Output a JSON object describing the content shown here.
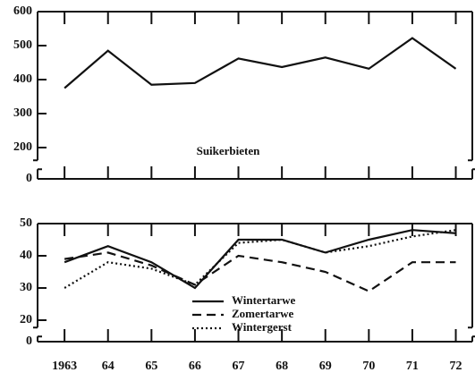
{
  "chart_data": [
    {
      "type": "line",
      "title": "Suikerbieten",
      "values": [
        375,
        485,
        385,
        390,
        462,
        437,
        465,
        432,
        522,
        432
      ],
      "color": "#111111",
      "line_style": "solid",
      "ylim": [
        0,
        600
      ],
      "axis_break": [
        0,
        200
      ],
      "yticks": [
        0,
        200,
        300,
        400,
        500,
        600
      ]
    },
    {
      "type": "line",
      "categories": [
        "1963",
        "64",
        "65",
        "66",
        "67",
        "68",
        "69",
        "70",
        "71",
        "72"
      ],
      "series": [
        {
          "name": "Wintertarwe",
          "color": "#111111",
          "line_style": "solid",
          "values": [
            38,
            43,
            38,
            30,
            45,
            45,
            41,
            45,
            48,
            47
          ]
        },
        {
          "name": "Zomertarwe",
          "color": "#111111",
          "line_style": "dashed",
          "values": [
            39,
            41,
            37,
            31,
            40,
            38,
            35,
            29,
            38,
            38
          ]
        },
        {
          "name": "Wintergerst",
          "color": "#111111",
          "line_style": "dotted",
          "values": [
            30,
            38,
            36,
            31,
            44,
            45,
            41,
            43,
            46,
            48
          ]
        }
      ],
      "legend": "bottom-center",
      "ylim": [
        0,
        50
      ],
      "axis_break": [
        0,
        20
      ],
      "yticks": [
        0,
        20,
        30,
        40,
        50
      ]
    }
  ]
}
